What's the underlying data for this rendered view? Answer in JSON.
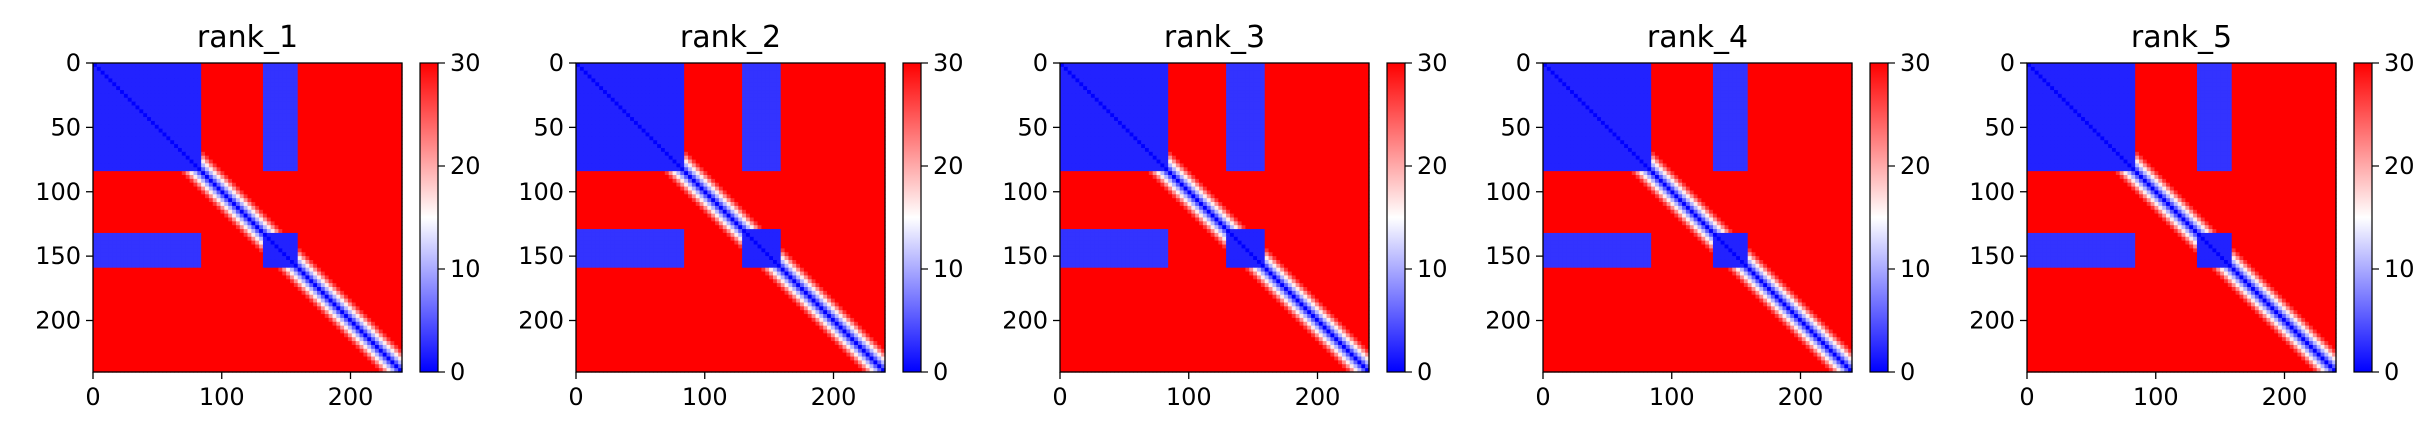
{
  "chart_data": [
    {
      "type": "heatmap",
      "title": "rank_1",
      "xticks": [
        0,
        100,
        200
      ],
      "yticks": [
        0,
        50,
        100,
        150,
        200
      ],
      "xlim": [
        0,
        240
      ],
      "ylim": [
        240,
        0
      ],
      "colorbar": {
        "ticks": [
          0,
          10,
          20,
          30
        ],
        "range": [
          0,
          30
        ],
        "colormap": "bwr"
      },
      "blocks": [
        {
          "rows": [
            0,
            85
          ],
          "cols": [
            0,
            85
          ],
          "value": 2
        },
        {
          "rows": [
            0,
            85
          ],
          "cols": [
            132,
            160
          ],
          "value": 3
        },
        {
          "rows": [
            132,
            160
          ],
          "cols": [
            0,
            85
          ],
          "value": 3
        },
        {
          "rows": [
            132,
            160
          ],
          "cols": [
            132,
            160
          ],
          "value": 2
        }
      ]
    },
    {
      "type": "heatmap",
      "title": "rank_2",
      "xticks": [
        0,
        100,
        200
      ],
      "yticks": [
        0,
        50,
        100,
        150,
        200
      ],
      "xlim": [
        0,
        240
      ],
      "ylim": [
        240,
        0
      ],
      "colorbar": {
        "ticks": [
          0,
          10,
          20,
          30
        ],
        "range": [
          0,
          30
        ],
        "colormap": "bwr"
      },
      "blocks": [
        {
          "rows": [
            0,
            85
          ],
          "cols": [
            0,
            85
          ],
          "value": 2
        },
        {
          "rows": [
            0,
            85
          ],
          "cols": [
            130,
            160
          ],
          "value": 3
        },
        {
          "rows": [
            130,
            160
          ],
          "cols": [
            0,
            85
          ],
          "value": 3
        },
        {
          "rows": [
            130,
            160
          ],
          "cols": [
            130,
            160
          ],
          "value": 2
        }
      ]
    },
    {
      "type": "heatmap",
      "title": "rank_3",
      "xticks": [
        0,
        100,
        200
      ],
      "yticks": [
        0,
        50,
        100,
        150,
        200
      ],
      "xlim": [
        0,
        240
      ],
      "ylim": [
        240,
        0
      ],
      "colorbar": {
        "ticks": [
          0,
          10,
          20,
          30
        ],
        "range": [
          0,
          30
        ],
        "colormap": "bwr"
      },
      "blocks": [
        {
          "rows": [
            0,
            85
          ],
          "cols": [
            0,
            85
          ],
          "value": 2
        },
        {
          "rows": [
            0,
            85
          ],
          "cols": [
            130,
            160
          ],
          "value": 3
        },
        {
          "rows": [
            130,
            160
          ],
          "cols": [
            0,
            85
          ],
          "value": 3
        },
        {
          "rows": [
            130,
            160
          ],
          "cols": [
            130,
            160
          ],
          "value": 2
        }
      ]
    },
    {
      "type": "heatmap",
      "title": "rank_4",
      "xticks": [
        0,
        100,
        200
      ],
      "yticks": [
        0,
        50,
        100,
        150,
        200
      ],
      "xlim": [
        0,
        240
      ],
      "ylim": [
        240,
        0
      ],
      "colorbar": {
        "ticks": [
          0,
          10,
          20,
          30
        ],
        "range": [
          0,
          30
        ],
        "colormap": "bwr"
      },
      "blocks": [
        {
          "rows": [
            0,
            85
          ],
          "cols": [
            0,
            85
          ],
          "value": 2
        },
        {
          "rows": [
            0,
            85
          ],
          "cols": [
            132,
            160
          ],
          "value": 3
        },
        {
          "rows": [
            132,
            160
          ],
          "cols": [
            0,
            85
          ],
          "value": 3
        },
        {
          "rows": [
            132,
            160
          ],
          "cols": [
            132,
            160
          ],
          "value": 2
        }
      ]
    },
    {
      "type": "heatmap",
      "title": "rank_5",
      "xticks": [
        0,
        100,
        200
      ],
      "yticks": [
        0,
        50,
        100,
        150,
        200
      ],
      "xlim": [
        0,
        240
      ],
      "ylim": [
        240,
        0
      ],
      "colorbar": {
        "ticks": [
          0,
          10,
          20,
          30
        ],
        "range": [
          0,
          30
        ],
        "colormap": "bwr"
      },
      "blocks": [
        {
          "rows": [
            0,
            85
          ],
          "cols": [
            0,
            85
          ],
          "value": 2
        },
        {
          "rows": [
            0,
            85
          ],
          "cols": [
            132,
            160
          ],
          "value": 3
        },
        {
          "rows": [
            132,
            160
          ],
          "cols": [
            0,
            85
          ],
          "value": 3
        },
        {
          "rows": [
            132,
            160
          ],
          "cols": [
            132,
            160
          ],
          "value": 2
        }
      ]
    }
  ],
  "colors": {
    "low": "#0000ff",
    "mid": "#ffffff",
    "high": "#ff0000"
  },
  "diagonal_value": 0,
  "background_value": 30
}
